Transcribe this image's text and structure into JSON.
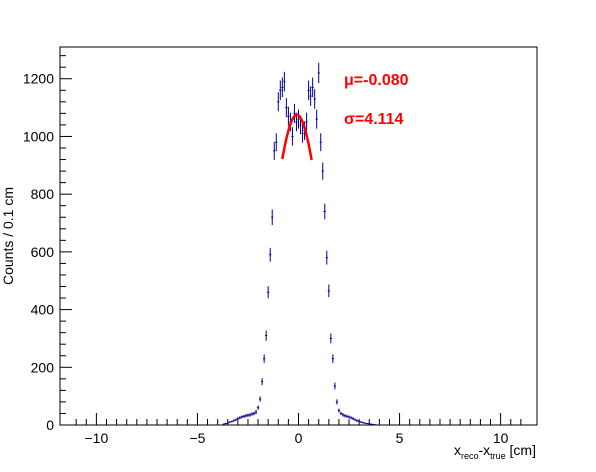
{
  "chart_data": {
    "type": "scatter",
    "title": "",
    "xlabel": {
      "base": "x",
      "sub1": "reco",
      "dash": "-x",
      "sub2": "true",
      "unit": " [cm]"
    },
    "ylabel": "Counts / 0.1 cm",
    "xlim": [
      -11.8,
      11.8
    ],
    "ylim": [
      0,
      1310
    ],
    "xticks": [
      -10,
      -5,
      0,
      5,
      10
    ],
    "xtick_labels": [
      "−10",
      "−5",
      "0",
      "5",
      "10"
    ],
    "yticks": [
      0,
      200,
      400,
      600,
      800,
      1000,
      1200
    ],
    "ytick_labels": [
      "0",
      "200",
      "400",
      "600",
      "800",
      "1000",
      "1200"
    ],
    "grid": false,
    "series": [
      {
        "color": "#00008b",
        "x": [
          -3.7,
          -3.6,
          -3.5,
          -3.4,
          -3.3,
          -3.2,
          -3.1,
          -3.0,
          -2.9,
          -2.8,
          -2.7,
          -2.6,
          -2.5,
          -2.4,
          -2.3,
          -2.2,
          -2.1,
          -2.0,
          -1.9,
          -1.8,
          -1.7,
          -1.6,
          -1.5,
          -1.4,
          -1.3,
          -1.2,
          -1.1,
          -1.0,
          -0.9,
          -0.8,
          -0.7,
          -0.6,
          -0.5,
          -0.4,
          -0.3,
          -0.2,
          -0.1,
          0.0,
          0.1,
          0.2,
          0.3,
          0.4,
          0.5,
          0.6,
          0.7,
          0.8,
          0.9,
          1.0,
          1.1,
          1.2,
          1.3,
          1.4,
          1.5,
          1.6,
          1.7,
          1.8,
          1.9,
          2.0,
          2.1,
          2.2,
          2.3,
          2.4,
          2.5,
          2.6,
          2.7,
          2.8,
          2.9,
          3.0,
          3.1,
          3.2,
          3.3,
          3.4,
          3.5,
          3.6,
          3.7,
          3.8
        ],
        "y": [
          3,
          5,
          6,
          10,
          12,
          15,
          18,
          22,
          25,
          28,
          30,
          32,
          34,
          35,
          38,
          40,
          45,
          60,
          90,
          150,
          230,
          310,
          460,
          590,
          720,
          950,
          980,
          1120,
          1160,
          1170,
          1190,
          1100,
          1070,
          1050,
          1000,
          1080,
          1050,
          1060,
          1040,
          1010,
          1020,
          1050,
          1160,
          1140,
          1170,
          1130,
          1060,
          1220,
          980,
          880,
          740,
          580,
          465,
          300,
          230,
          135,
          80,
          50,
          40,
          35,
          32,
          30,
          28,
          25,
          22,
          18,
          15,
          12,
          10,
          8,
          6,
          5,
          4,
          3,
          2,
          1
        ],
        "err": [
          2,
          2,
          2,
          3,
          3,
          4,
          4,
          5,
          5,
          5,
          5,
          6,
          6,
          6,
          6,
          6,
          7,
          8,
          9,
          12,
          15,
          18,
          21,
          24,
          27,
          31,
          31,
          33,
          34,
          34,
          34,
          33,
          33,
          32,
          32,
          33,
          32,
          33,
          32,
          32,
          32,
          32,
          34,
          34,
          34,
          34,
          33,
          35,
          31,
          30,
          27,
          24,
          22,
          17,
          15,
          12,
          9,
          7,
          6,
          6,
          6,
          5,
          5,
          5,
          5,
          4,
          4,
          3,
          3,
          3,
          2,
          2,
          2,
          2,
          1,
          1
        ]
      }
    ],
    "fit": {
      "color": "#ff0000",
      "mu": -0.08,
      "peak": 1075,
      "width": 1.3,
      "x_from": -0.8,
      "x_to": 0.65
    },
    "annotations": [
      {
        "symbol": "μ",
        "text": "=-0.080",
        "color": "#ff0000"
      },
      {
        "symbol": "σ",
        "text": "=4.114",
        "color": "#ff0000"
      }
    ]
  }
}
